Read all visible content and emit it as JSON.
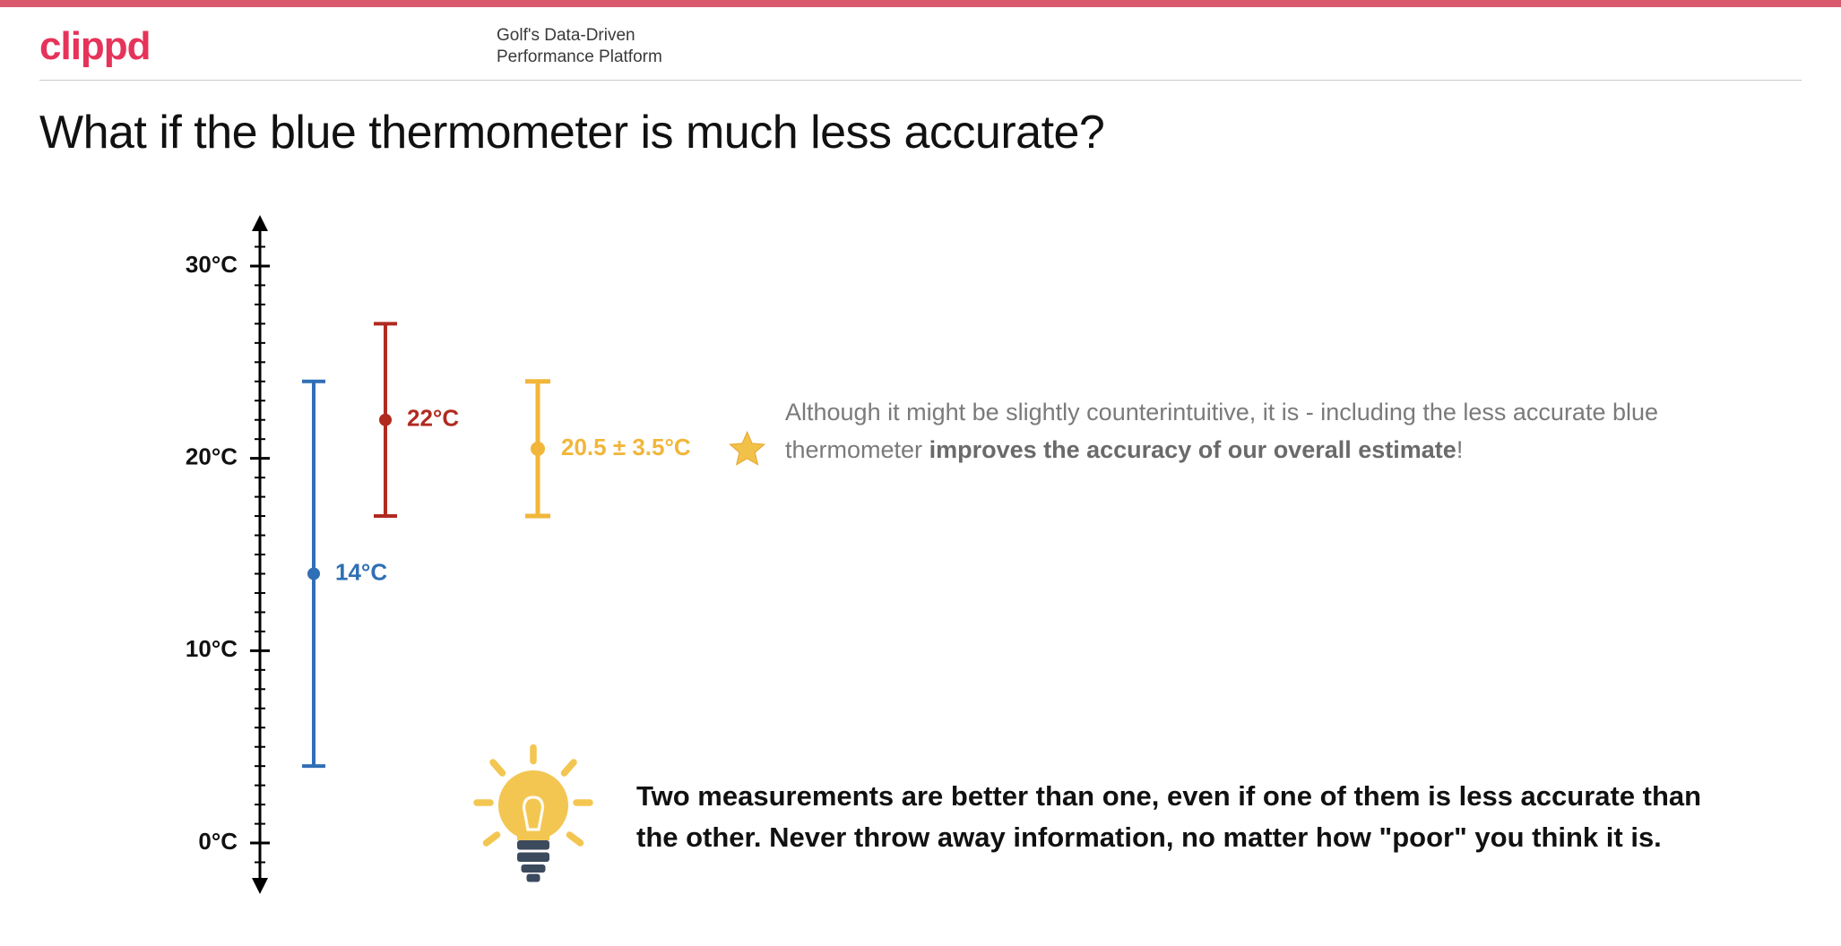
{
  "brand": {
    "logo_text": "clippd",
    "logo_color": "#e6335a",
    "logo_fontsize": 44
  },
  "topbar_color": "#da5a6d",
  "tagline_line1": "Golf's Data-Driven",
  "tagline_line2": "Performance Platform",
  "title": "What if the blue thermometer is much less accurate?",
  "chart": {
    "type": "errorbar-axis",
    "axis_color": "#000000",
    "axis_stroke": 3,
    "tick_minor_len": 12,
    "tick_major_len": 22,
    "y_min": -2,
    "y_max": 32,
    "tick_step": 1,
    "labels": [
      {
        "value": 0,
        "text": "0°C"
      },
      {
        "value": 10,
        "text": "10°C"
      },
      {
        "value": 20,
        "text": "20°C"
      },
      {
        "value": 30,
        "text": "30°C"
      }
    ],
    "label_fontsize": 26,
    "label_fontweight": 700,
    "label_color": "#111111",
    "series": [
      {
        "id": "blue",
        "x_offset": 60,
        "center": 14,
        "error": 10,
        "color": "#2f6fb5",
        "stroke": 4,
        "dot_r": 7,
        "cap_w": 26,
        "label": "14°C",
        "label_color": "#2f6fb5",
        "label_fontsize": 26,
        "label_fontweight": 700,
        "label_dx": 24
      },
      {
        "id": "red",
        "x_offset": 140,
        "center": 22,
        "error": 5,
        "color": "#b12a1f",
        "stroke": 4,
        "dot_r": 7,
        "cap_w": 26,
        "label": "22°C",
        "label_color": "#b12a1f",
        "label_fontsize": 26,
        "label_fontweight": 700,
        "label_dx": 24
      },
      {
        "id": "yellow",
        "x_offset": 310,
        "center": 20.5,
        "error": 3.5,
        "color": "#f1b63a",
        "stroke": 5,
        "dot_r": 8,
        "cap_w": 28,
        "label": "20.5 ± 3.5°C",
        "label_color": "#f1b63a",
        "label_fontsize": 26,
        "label_fontweight": 700,
        "label_dx": 26
      }
    ],
    "star": {
      "after_series": "yellow",
      "color_fill": "#f2c14a",
      "color_stroke": "#e8a82f",
      "size": 44,
      "gap": 14
    }
  },
  "explain_pre": "Although it might be slightly counterintuitive, it is - including the less accurate blue thermometer ",
  "explain_bold": "improves the accuracy of our overall estimate",
  "explain_post": "!",
  "insight": "Two measurements are better than one, even if one of them is less accurate than the other. Never throw away information, no matter how \"poor\" you think it is.",
  "bulb": {
    "bulb_fill": "#f3c652",
    "base_fill": "#3c4a5e",
    "ray_color": "#f3c652",
    "filament_color": "#ffffff",
    "size": 150
  }
}
